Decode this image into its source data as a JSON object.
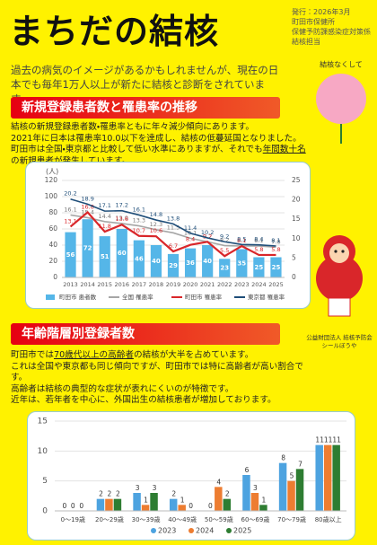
{
  "header": {
    "title": "まちだの結核",
    "issue": [
      "発行：2026年3月",
      "町田市保健所",
      "保健予防課感染症対策係",
      "結核担当"
    ]
  },
  "intro": "過去の病気のイメージがあるかもしれませんが、現在の日本でも毎年1万人以上が新たに結核と診断をされています。",
  "badge": "結核なくして",
  "mascot_caption": [
    "公益財団法人 結核予防会",
    "シールぼうや"
  ],
  "sections": [
    {
      "title": "新規登録患者数と罹患率の推移",
      "body": [
        "結核の新規登録患者数・罹患率ともに年々減少傾向にあります。",
        "2021年に日本は罹患率10.0以下を達成し、結核の低蔓延国となりました。町田市は全国・東京都と比較して低い水準にありますが、それでも",
        "年間数十名",
        "の新規患者が発生しています。"
      ]
    },
    {
      "title": "年齢階層別登録者数",
      "body": [
        "町田市では",
        "70歳代以上の高齢者",
        "の結核が大半を占めています。",
        "これは全国や東京都も同じ傾向ですが、町田市では特に高齢者が高い割合です。",
        "高齢者は結核の典型的な症状が表れにくいのが特徴です。",
        "近年は、若年者を中心に、外国出生の結核患者が増加しております。"
      ]
    }
  ],
  "chart_data": [
    {
      "type": "bar-line",
      "y_label": "(人)",
      "categories": [
        "2013",
        "2014",
        "2015",
        "2016",
        "2017",
        "2018",
        "2019",
        "2020",
        "2021",
        "2022",
        "2023",
        "2024",
        "2025"
      ],
      "ylim": [
        0,
        120
      ],
      "yticks": [
        0,
        20,
        40,
        60,
        80,
        100,
        120
      ],
      "y2lim": [
        0,
        25
      ],
      "y2ticks": [
        0,
        5,
        10,
        15,
        20,
        25
      ],
      "grid": true,
      "legend": "bottom",
      "series": [
        {
          "name": "町田市 患者数",
          "kind": "bar",
          "color": "#55b6e8",
          "values": [
            56,
            72,
            51,
            60,
            46,
            40,
            29,
            36,
            40,
            23,
            35,
            25,
            25
          ]
        },
        {
          "name": "全国 罹患率",
          "kind": "line",
          "axis": "y2",
          "color": "#a6a6a6",
          "values": [
            16.1,
            15.4,
            14.4,
            13.9,
            13.3,
            12.3,
            11.5,
            10.1,
            9.2,
            8.2,
            8.1,
            8.1,
            7.8
          ]
        },
        {
          "name": "町田市 罹患率",
          "kind": "line",
          "axis": "y2",
          "color": "#d9262a",
          "values": [
            13.1,
            16.8,
            11.8,
            13.6,
            10.7,
            10.6,
            6.7,
            8.4,
            9.2,
            5.5,
            8.1,
            5.8,
            5.8
          ]
        },
        {
          "name": "東京都 罹患率",
          "kind": "line",
          "axis": "y2",
          "color": "#1f4e79",
          "values": [
            20.2,
            18.9,
            17.1,
            17.2,
            16.1,
            14.8,
            13.8,
            11.4,
            10.2,
            9.2,
            8.5,
            8.4,
            8.1
          ]
        }
      ]
    },
    {
      "type": "bar",
      "categories": [
        "0〜19歳",
        "20〜29歳",
        "30〜39歳",
        "40〜49歳",
        "50〜59歳",
        "60〜69歳",
        "70〜79歳",
        "80歳以上"
      ],
      "ylim": [
        0,
        15
      ],
      "yticks": [
        0,
        5,
        10,
        15
      ],
      "grid": true,
      "legend": "bottom",
      "series": [
        {
          "name": "2023",
          "color": "#4da3e0",
          "values": [
            0,
            2,
            3,
            2,
            0,
            6,
            8,
            11
          ]
        },
        {
          "name": "2024",
          "color": "#ed7d31",
          "values": [
            0,
            2,
            1,
            1,
            4,
            3,
            5,
            11
          ]
        },
        {
          "name": "2025",
          "color": "#2e7d32",
          "values": [
            0,
            2,
            3,
            0,
            2,
            1,
            7,
            11
          ]
        }
      ]
    }
  ]
}
